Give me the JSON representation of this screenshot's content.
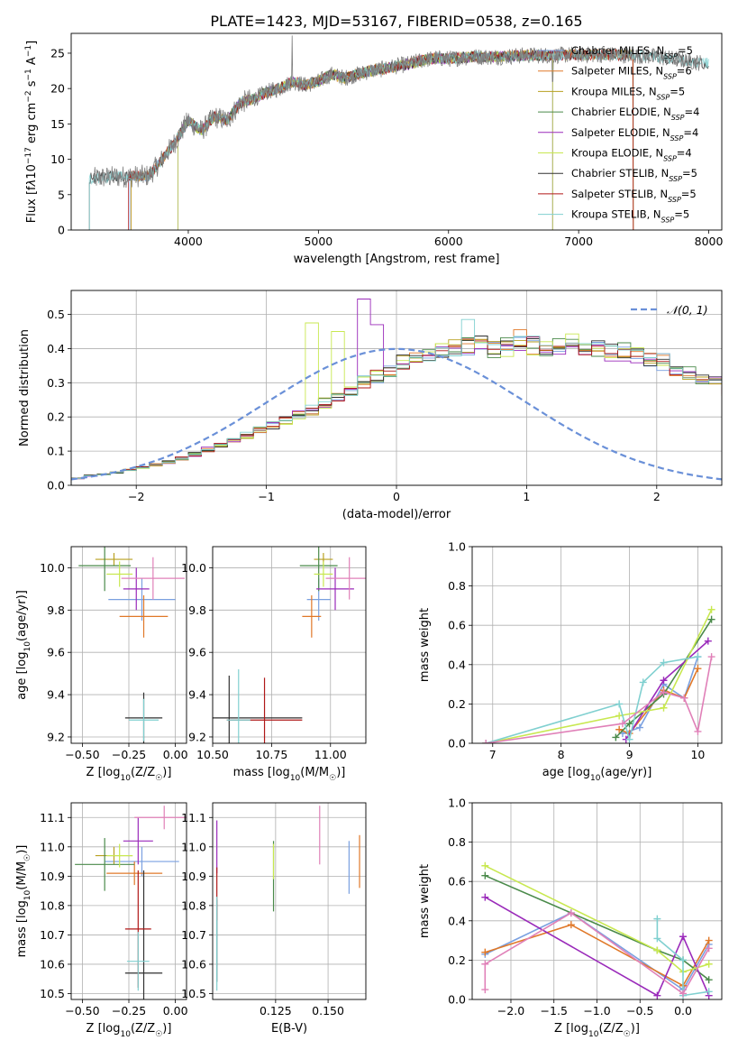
{
  "figure": {
    "title": "PLATE=1423, MJD=53167, FIBERID=0538, z=0.165"
  },
  "colors": {
    "s0": "#7aa0e0",
    "s1": "#e07828",
    "s2": "#b8a020",
    "s3": "#4a8a4a",
    "s4": "#9a2aba",
    "s5": "#c8e850",
    "s6": "#303030",
    "s7": "#b01818",
    "s8": "#80d0d0",
    "spec_gray": "#808080",
    "pink": "#e080b8",
    "normal_line": "#6a90d8"
  },
  "chart_data": [
    {
      "id": "spectrum",
      "type": "line",
      "xlabel": "wavelength [Angstrom, rest frame]",
      "ylabel_parts": [
        "Flux [f",
        "λ",
        "10",
        "−17",
        " erg cm",
        "−2",
        " s",
        "−1",
        " A",
        "−1",
        "]"
      ],
      "xlim": [
        3100,
        8100
      ],
      "ylim": [
        0,
        27.8
      ],
      "xticks": [
        4000,
        5000,
        6000,
        7000,
        8000
      ],
      "yticks": [
        0,
        5,
        10,
        15,
        20,
        25
      ],
      "grid": false,
      "legend_position": "right",
      "legend": [
        {
          "name": "Chabrier MILES",
          "nssp": "5"
        },
        {
          "name": "Salpeter MILES",
          "nssp": "6"
        },
        {
          "name": "Kroupa MILES",
          "nssp": "5"
        },
        {
          "name": "Chabrier ELODIE",
          "nssp": "4"
        },
        {
          "name": "Salpeter ELODIE",
          "nssp": "4"
        },
        {
          "name": "Kroupa ELODIE",
          "nssp": "4"
        },
        {
          "name": "Chabrier STELIB",
          "nssp": "5"
        },
        {
          "name": "Salpeter STELIB",
          "nssp": "5"
        },
        {
          "name": "Kroupa STELIB",
          "nssp": "5"
        }
      ],
      "continuum": [
        [
          3270,
          7.3
        ],
        [
          3400,
          7.5
        ],
        [
          3600,
          7.6
        ],
        [
          3700,
          7.7
        ],
        [
          3800,
          10
        ],
        [
          3900,
          12.5
        ],
        [
          4000,
          15.5
        ],
        [
          4100,
          14
        ],
        [
          4200,
          16
        ],
        [
          4300,
          15.5
        ],
        [
          4400,
          18
        ],
        [
          4500,
          18.5
        ],
        [
          4600,
          19.5
        ],
        [
          4700,
          20
        ],
        [
          4800,
          21
        ],
        [
          4900,
          20.5
        ],
        [
          5000,
          21
        ],
        [
          5100,
          22
        ],
        [
          5200,
          21.5
        ],
        [
          5300,
          22
        ],
        [
          5400,
          22.5
        ],
        [
          5500,
          22.8
        ],
        [
          5600,
          23.2
        ],
        [
          5700,
          23.5
        ],
        [
          5800,
          24
        ],
        [
          5900,
          24.3
        ],
        [
          6000,
          24.2
        ],
        [
          6200,
          24.5
        ],
        [
          6400,
          24.5
        ],
        [
          6600,
          24.7
        ],
        [
          6800,
          24.7
        ],
        [
          7000,
          24.8
        ],
        [
          7200,
          24.8
        ],
        [
          7400,
          24.7
        ],
        [
          7600,
          24.5
        ],
        [
          7800,
          24
        ],
        [
          7950,
          23.6
        ]
      ],
      "model_ranges": [
        [
          3550,
          7420
        ],
        [
          3560,
          7420
        ],
        [
          3560,
          7420
        ],
        [
          3920,
          6800
        ],
        [
          3920,
          6800
        ],
        [
          3920,
          6800
        ],
        [
          3240,
          8000
        ],
        [
          3540,
          7420
        ],
        [
          3240,
          8000
        ]
      ]
    },
    {
      "id": "residuals",
      "type": "histogram",
      "xlabel": "(data-model)/error",
      "ylabel": "Normed distribution",
      "xlim": [
        -2.5,
        2.5
      ],
      "ylim": [
        0,
        0.57
      ],
      "xticks": [
        -2,
        -1,
        0,
        1,
        2
      ],
      "yticks": [
        0.0,
        0.1,
        0.2,
        0.3,
        0.4,
        0.5
      ],
      "grid": true,
      "legend_position": "top-right",
      "legend": [
        {
          "name": "𝒩(0, 1)"
        }
      ],
      "bin_edges_start": -2.5,
      "bin_width": 0.1,
      "base_values": [
        0.02,
        0.028,
        0.032,
        0.038,
        0.045,
        0.052,
        0.06,
        0.068,
        0.078,
        0.09,
        0.105,
        0.115,
        0.13,
        0.145,
        0.16,
        0.175,
        0.19,
        0.205,
        0.22,
        0.24,
        0.26,
        0.28,
        0.3,
        0.32,
        0.34,
        0.36,
        0.37,
        0.38,
        0.39,
        0.4,
        0.405,
        0.41,
        0.4,
        0.405,
        0.41,
        0.41,
        0.4,
        0.405,
        0.42,
        0.41,
        0.4,
        0.39,
        0.39,
        0.38,
        0.37,
        0.36,
        0.34,
        0.33,
        0.31,
        0.3,
        0.28,
        0.26,
        0.245,
        0.23,
        0.21,
        0.195,
        0.18,
        0.165,
        0.15,
        0.135,
        0.12,
        0.105,
        0.095,
        0.085,
        0.075,
        0.065,
        0.055,
        0.05,
        0.045,
        0.04,
        0.035,
        0.03,
        0.028,
        0.026,
        0.024,
        0.022,
        0.02,
        0.02,
        0.02,
        0.02
      ],
      "highlights": [
        [
          4,
          22,
          0.545
        ],
        [
          5,
          18,
          0.475
        ],
        [
          4,
          23,
          0.47
        ],
        [
          8,
          30,
          0.485
        ],
        [
          1,
          34,
          0.455
        ],
        [
          5,
          20,
          0.45
        ]
      ]
    },
    {
      "id": "z-age",
      "type": "scatter",
      "xlabel": "Z [log10(Z/Z☉)]",
      "ylabel": "age  [log10(age/yr)]",
      "xlim": [
        -0.56,
        0.06
      ],
      "ylim": [
        9.17,
        10.1
      ],
      "xticks": [
        -0.5,
        -0.25,
        0.0
      ],
      "yticks": [
        9.2,
        9.4,
        9.6,
        9.8,
        10.0
      ],
      "grid": true,
      "points": [
        {
          "s": 0,
          "x": -0.18,
          "y": 9.85,
          "ex": 0.18,
          "ey": 0.1
        },
        {
          "s": 1,
          "x": -0.17,
          "y": 9.77,
          "ex": 0.13,
          "ey": 0.1
        },
        {
          "s": 2,
          "x": -0.33,
          "y": 10.04,
          "ex": 0.1,
          "ey": 0.03
        },
        {
          "s": 3,
          "x": -0.38,
          "y": 10.01,
          "ex": 0.14,
          "ey": 0.12
        },
        {
          "s": 4,
          "x": -0.21,
          "y": 9.9,
          "ex": 0.07,
          "ey": 0.1
        },
        {
          "s": 5,
          "x": -0.3,
          "y": 9.97,
          "ex": 0.07,
          "ey": 0.06
        },
        {
          "s": 6,
          "x": -0.17,
          "y": 9.29,
          "ex": 0.1,
          "ey": 0.12
        },
        {
          "s": 8,
          "x": -0.17,
          "y": 9.28,
          "ex": 0.08,
          "ey": 0.1
        },
        {
          "s": "pink",
          "x": -0.12,
          "y": 9.95,
          "ex": 0.17,
          "ey": 0.1
        }
      ]
    },
    {
      "id": "mass-age",
      "type": "scatter",
      "xlabel": "mass [log10(M/M☉)]",
      "ylabel": "",
      "xlim": [
        10.5,
        11.15
      ],
      "ylim": [
        9.17,
        10.1
      ],
      "xticks": [
        10.5,
        10.75,
        11.0
      ],
      "yticks": [
        9.2,
        9.4,
        9.6,
        9.8,
        10.0
      ],
      "grid": true,
      "points": [
        {
          "s": 0,
          "x": 10.95,
          "y": 9.85,
          "ex": 0.05,
          "ey": 0.1
        },
        {
          "s": 1,
          "x": 10.92,
          "y": 9.77,
          "ex": 0.04,
          "ey": 0.1
        },
        {
          "s": 2,
          "x": 10.97,
          "y": 10.04,
          "ex": 0.04,
          "ey": 0.03
        },
        {
          "s": 3,
          "x": 10.95,
          "y": 10.01,
          "ex": 0.08,
          "ey": 0.12
        },
        {
          "s": 4,
          "x": 11.02,
          "y": 9.9,
          "ex": 0.08,
          "ey": 0.1
        },
        {
          "s": 5,
          "x": 10.97,
          "y": 9.97,
          "ex": 0.04,
          "ey": 0.06
        },
        {
          "s": 6,
          "x": 10.57,
          "y": 9.29,
          "ex": 0.31,
          "ey": 0.2
        },
        {
          "s": 7,
          "x": 10.72,
          "y": 9.28,
          "ex": 0.16,
          "ey": 0.2
        },
        {
          "s": 8,
          "x": 10.61,
          "y": 9.28,
          "ex": 0.05,
          "ey": 0.24
        },
        {
          "s": "pink",
          "x": 11.08,
          "y": 9.95,
          "ex": 0.1,
          "ey": 0.1
        }
      ]
    },
    {
      "id": "age-weight",
      "type": "line",
      "xlabel": "age  [log10(age/yr)]",
      "ylabel": "mass weight",
      "xlim": [
        6.7,
        10.35
      ],
      "ylim": [
        0,
        1.0
      ],
      "xticks": [
        7,
        8,
        9,
        10
      ],
      "yticks": [
        0.0,
        0.2,
        0.4,
        0.6,
        0.8,
        1.0
      ],
      "grid": true,
      "series": [
        {
          "s": 0,
          "x": [
            8.9,
            9.15,
            9.5,
            9.8,
            10.0
          ],
          "y": [
            0.05,
            0.08,
            0.3,
            0.23,
            0.44
          ]
        },
        {
          "s": 1,
          "x": [
            8.85,
            9.0,
            9.5,
            9.8,
            10.0
          ],
          "y": [
            0.07,
            0.05,
            0.27,
            0.23,
            0.38
          ]
        },
        {
          "s": 3,
          "x": [
            8.8,
            9.0,
            9.5,
            10.2
          ],
          "y": [
            0.03,
            0.1,
            0.25,
            0.63
          ]
        },
        {
          "s": 4,
          "x": [
            8.95,
            9.5,
            10.15
          ],
          "y": [
            0.02,
            0.32,
            0.52
          ]
        },
        {
          "s": 5,
          "x": [
            6.9,
            8.85,
            9.5,
            10.2
          ],
          "y": [
            0.0,
            0.14,
            0.18,
            0.68
          ]
        },
        {
          "s": 8,
          "x": [
            6.9,
            8.85,
            9.0,
            9.2,
            9.5,
            10.0
          ],
          "y": [
            0.0,
            0.2,
            0.02,
            0.31,
            0.41,
            0.44
          ]
        },
        {
          "s": "pink",
          "x": [
            6.9,
            8.9,
            9.5,
            9.8,
            10.0,
            10.2
          ],
          "y": [
            0.0,
            0.1,
            0.26,
            0.23,
            0.06,
            0.44
          ]
        }
      ]
    },
    {
      "id": "z-mass",
      "type": "scatter",
      "xlabel": "Z [log10(Z/Z☉)]",
      "ylabel": "mass [log10(M/M☉)]",
      "xlim": [
        -0.56,
        0.06
      ],
      "ylim": [
        10.48,
        11.15
      ],
      "xticks": [
        -0.5,
        -0.25,
        0.0
      ],
      "yticks": [
        10.5,
        10.6,
        10.7,
        10.8,
        10.9,
        11.0,
        11.1
      ],
      "grid": true,
      "points": [
        {
          "s": 0,
          "x": -0.18,
          "y": 10.95,
          "ex": 0.2,
          "ey": 0.05
        },
        {
          "s": 1,
          "x": -0.22,
          "y": 10.91,
          "ex": 0.15,
          "ey": 0.04
        },
        {
          "s": 2,
          "x": -0.33,
          "y": 10.97,
          "ex": 0.1,
          "ey": 0.03
        },
        {
          "s": 3,
          "x": -0.38,
          "y": 10.94,
          "ex": 0.16,
          "ey": 0.09
        },
        {
          "s": 4,
          "x": -0.2,
          "y": 11.02,
          "ex": 0.08,
          "ey": 0.08
        },
        {
          "s": 5,
          "x": -0.3,
          "y": 10.97,
          "ex": 0.07,
          "ey": 0.04
        },
        {
          "s": 6,
          "x": -0.17,
          "y": 10.57,
          "ex": 0.1,
          "ey": 0.35
        },
        {
          "s": 7,
          "x": -0.2,
          "y": 10.72,
          "ex": 0.07,
          "ey": 0.2
        },
        {
          "s": 8,
          "x": -0.2,
          "y": 10.61,
          "ex": 0.06,
          "ey": 0.1
        },
        {
          "s": "pink",
          "x": -0.06,
          "y": 11.1,
          "ex": 0.16,
          "ey": 0.04
        }
      ]
    },
    {
      "id": "ebv-mass",
      "type": "scatter",
      "xlabel": "E(B-V)",
      "ylabel": "",
      "xlim": [
        0.095,
        0.168
      ],
      "ylim": [
        10.48,
        11.15
      ],
      "xticks": [
        0.125,
        0.15
      ],
      "yticks": [
        10.5,
        10.6,
        10.7,
        10.8,
        10.9,
        11.0,
        11.1
      ],
      "grid": true,
      "points": [
        {
          "s": 0,
          "x": 0.16,
          "y": 10.93,
          "ex": 0.0,
          "ey": 0.09
        },
        {
          "s": 1,
          "x": 0.165,
          "y": 10.95,
          "ex": 0.0,
          "ey": 0.09
        },
        {
          "s": 3,
          "x": 0.124,
          "y": 10.9,
          "ex": 0.0,
          "ey": 0.12
        },
        {
          "s": 4,
          "x": 0.097,
          "y": 11.0,
          "ex": 0.0,
          "ey": 0.09
        },
        {
          "s": 5,
          "x": 0.124,
          "y": 10.95,
          "ex": 0.0,
          "ey": 0.06
        },
        {
          "s": 6,
          "x": 0.097,
          "y": 10.68,
          "ex": 0.0,
          "ey": 0.14
        },
        {
          "s": 7,
          "x": 0.097,
          "y": 10.84,
          "ex": 0.0,
          "ey": 0.09
        },
        {
          "s": 8,
          "x": 0.097,
          "y": 10.67,
          "ex": 0.0,
          "ey": 0.16
        },
        {
          "s": "pink",
          "x": 0.146,
          "y": 11.04,
          "ex": 0.0,
          "ey": 0.1
        }
      ]
    },
    {
      "id": "z-weight",
      "type": "line",
      "xlabel": "Z [log10(Z/Z☉)]",
      "ylabel": "mass weight",
      "xlim": [
        -2.45,
        0.45
      ],
      "ylim": [
        0,
        1.0
      ],
      "xticks": [
        -2.0,
        -1.5,
        -1.0,
        -0.5,
        0.0
      ],
      "yticks": [
        0.0,
        0.2,
        0.4,
        0.6,
        0.8,
        1.0
      ],
      "grid": true,
      "series": [
        {
          "s": 0,
          "x": [
            -2.3,
            -1.3,
            0.0,
            0.3
          ],
          "y": [
            0.23,
            0.44,
            0.05,
            0.28
          ]
        },
        {
          "s": 1,
          "x": [
            -2.3,
            -1.3,
            0.0,
            0.3
          ],
          "y": [
            0.24,
            0.38,
            0.07,
            0.3
          ]
        },
        {
          "s": 3,
          "x": [
            -2.3,
            -0.3,
            0.0,
            0.3
          ],
          "y": [
            0.63,
            0.25,
            0.2,
            0.1
          ]
        },
        {
          "s": 4,
          "x": [
            -2.3,
            -0.3,
            0.0,
            0.3
          ],
          "y": [
            0.52,
            0.02,
            0.32,
            0.02
          ]
        },
        {
          "s": 5,
          "x": [
            -2.3,
            -0.3,
            0.0,
            0.3
          ],
          "y": [
            0.68,
            0.25,
            0.14,
            0.18
          ]
        },
        {
          "s": 8,
          "x": [
            -0.3,
            -0.3,
            0.0,
            0.0,
            0.3
          ],
          "y": [
            0.41,
            0.31,
            0.2,
            0.02,
            0.04
          ]
        },
        {
          "s": "pink",
          "x": [
            -2.3,
            -2.3,
            -1.3,
            0.0,
            0.3
          ],
          "y": [
            0.05,
            0.18,
            0.44,
            0.03,
            0.26
          ]
        }
      ]
    }
  ]
}
